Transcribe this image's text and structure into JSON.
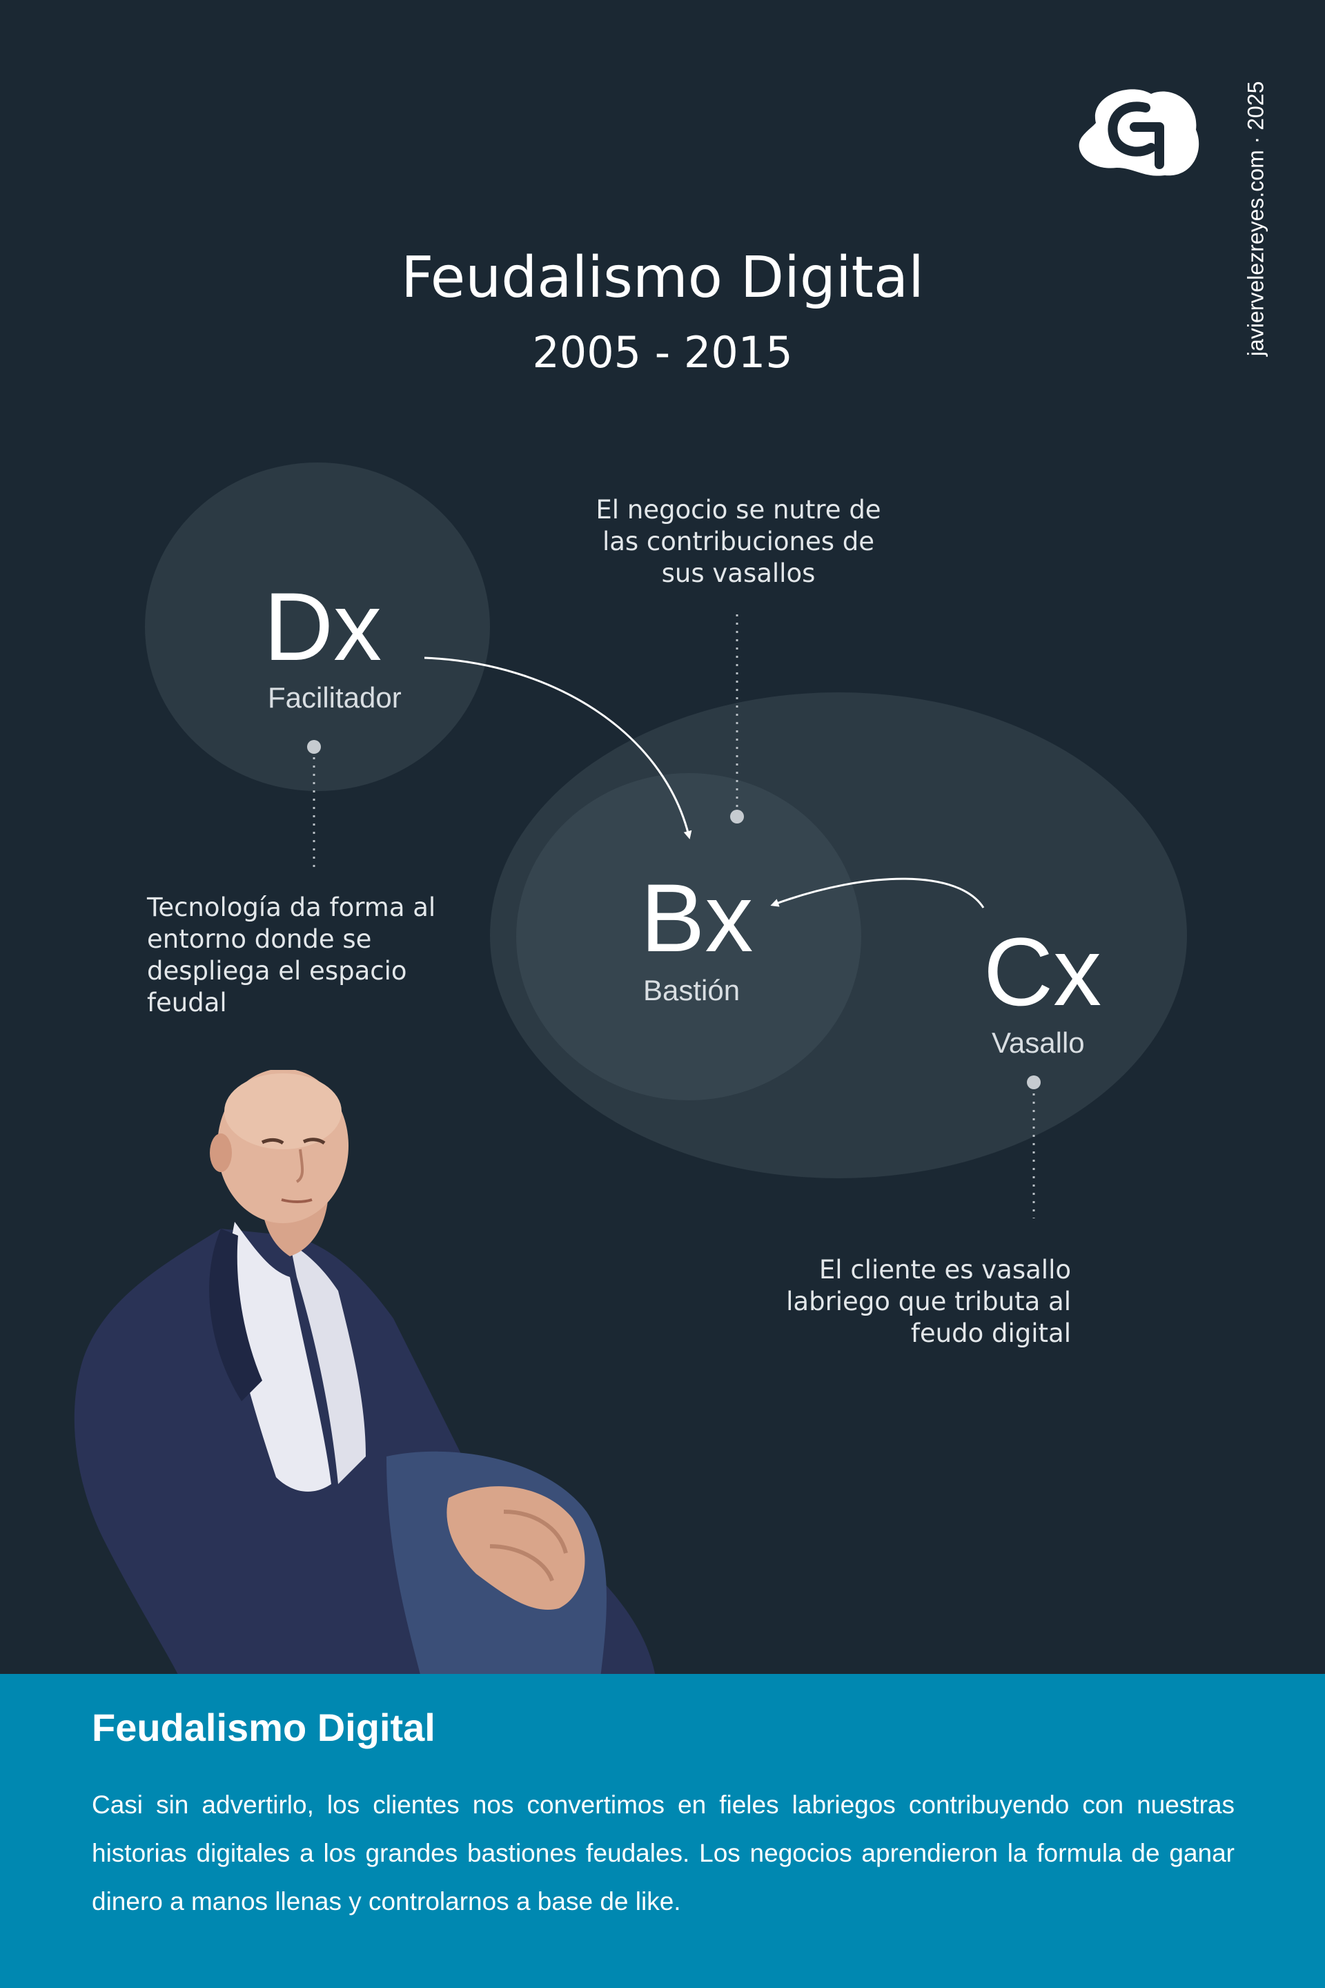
{
  "credit": "javiervelezreyes.com · 2025",
  "logo_icon": "cg-cloud-logo-icon",
  "title": "Feudalismo Digital",
  "subtitle": "2005 - 2015",
  "nodes": {
    "dx": {
      "symbol": "Dx",
      "role": "Facilitador"
    },
    "bx": {
      "symbol": "Bx",
      "role": "Bastión"
    },
    "cx": {
      "symbol": "Cx",
      "role": "Vasallo"
    }
  },
  "notes": {
    "business": [
      "El negocio se nutre de",
      "las contribuciones de",
      "sus vasallos"
    ],
    "technology": [
      "Tecnología da forma al",
      "entorno donde se",
      "despliega el espacio",
      "feudal"
    ],
    "client": [
      "El cliente es vasallo",
      "labriego que tributa al",
      "feudo digital"
    ]
  },
  "footer": {
    "title": "Feudalismo Digital",
    "body": "Casi sin advertirlo, los clientes nos convertimos en fieles labriegos contribuyendo con nuestras historias digitales a los grandes bastiones feudales. Los negocios aprendieron la formula de ganar dinero a manos llenas y controlarnos a base de like."
  },
  "colors": {
    "background": "#1b2833",
    "footer": "#0088b1",
    "text": "#ffffff"
  }
}
